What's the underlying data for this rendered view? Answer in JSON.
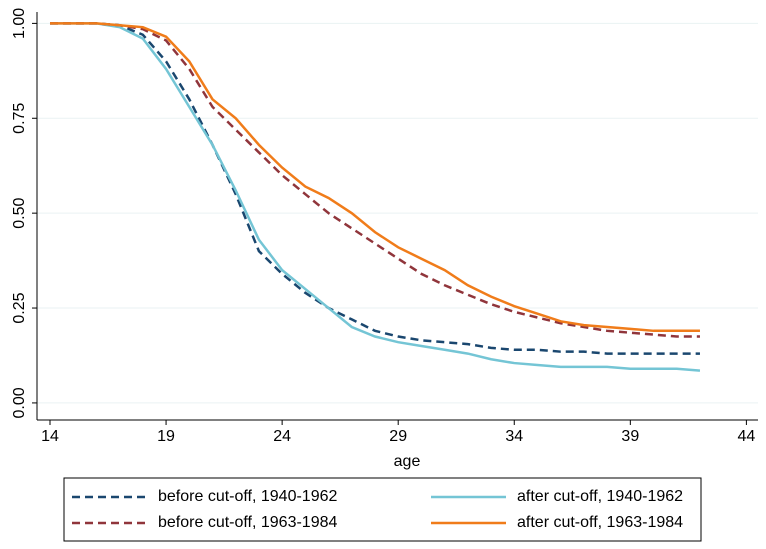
{
  "chart_data": {
    "type": "line",
    "x_label": "age",
    "x": [
      14,
      15,
      16,
      17,
      18,
      19,
      20,
      21,
      22,
      23,
      24,
      25,
      26,
      27,
      28,
      29,
      30,
      31,
      32,
      33,
      34,
      35,
      36,
      37,
      38,
      39,
      40,
      41,
      42
    ],
    "series": [
      {
        "name": "before cut-off, 1940-1962",
        "color": "#1a476f",
        "style": "dashed",
        "values": [
          1,
          1,
          1,
          0.995,
          0.97,
          0.9,
          0.8,
          0.68,
          0.55,
          0.4,
          0.34,
          0.29,
          0.25,
          0.22,
          0.19,
          0.175,
          0.165,
          0.16,
          0.155,
          0.145,
          0.14,
          0.14,
          0.135,
          0.135,
          0.13,
          0.13,
          0.13,
          0.13,
          0.13
        ]
      },
      {
        "name": "after cut-off, 1940-1962",
        "color": "#74c5d5",
        "style": "solid",
        "values": [
          1,
          1,
          1,
          0.99,
          0.96,
          0.88,
          0.78,
          0.68,
          0.56,
          0.43,
          0.35,
          0.3,
          0.25,
          0.2,
          0.175,
          0.16,
          0.15,
          0.14,
          0.13,
          0.115,
          0.105,
          0.1,
          0.095,
          0.095,
          0.095,
          0.09,
          0.09,
          0.09,
          0.085
        ]
      },
      {
        "name": "before cut-off, 1963-1984",
        "color": "#90353b",
        "style": "dashed",
        "values": [
          1,
          1,
          1,
          0.995,
          0.985,
          0.955,
          0.88,
          0.78,
          0.72,
          0.66,
          0.6,
          0.55,
          0.5,
          0.46,
          0.42,
          0.38,
          0.34,
          0.31,
          0.285,
          0.26,
          0.24,
          0.225,
          0.21,
          0.2,
          0.19,
          0.185,
          0.18,
          0.175,
          0.175
        ]
      },
      {
        "name": "after cut-off, 1963-1984",
        "color": "#f07c1a",
        "style": "solid",
        "values": [
          1,
          1,
          1,
          0.995,
          0.99,
          0.965,
          0.9,
          0.8,
          0.75,
          0.68,
          0.62,
          0.57,
          0.54,
          0.5,
          0.45,
          0.41,
          0.38,
          0.35,
          0.31,
          0.28,
          0.255,
          0.235,
          0.215,
          0.205,
          0.2,
          0.195,
          0.19,
          0.19,
          0.19
        ]
      }
    ],
    "xlim": [
      13.44,
      44.5
    ],
    "xticks": [
      14,
      19,
      24,
      29,
      34,
      39,
      44
    ],
    "ylim": [
      -0.045,
      1.03
    ],
    "yticks": [
      {
        "value": 0,
        "label": "0.00"
      },
      0.25,
      {
        "value": 0.5,
        "label": "0.50"
      },
      0.75,
      {
        "value": 1,
        "label": "1.00"
      }
    ],
    "grid": true
  }
}
